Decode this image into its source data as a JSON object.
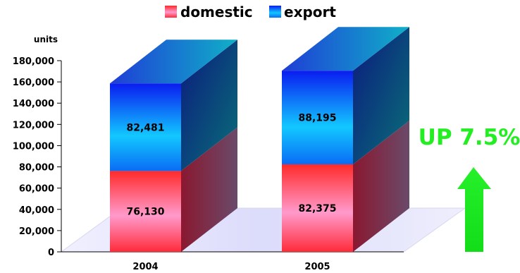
{
  "chart_data": {
    "type": "bar",
    "stacked": true,
    "three_d": true,
    "categories": [
      "2004",
      "2005"
    ],
    "series": [
      {
        "name": "domestic",
        "values": [
          76130,
          82375
        ],
        "labels": [
          "76,130",
          "82,375"
        ],
        "color_top": "#ff2a2a",
        "color_bottom": "#ff8ec2"
      },
      {
        "name": "export",
        "values": [
          82481,
          88195
        ],
        "labels": [
          "82,481",
          "88,195"
        ],
        "color_top": "#0a1cf0",
        "color_bottom": "#14d6ff"
      }
    ],
    "ylabel": "units",
    "ylim": [
      0,
      180000
    ],
    "yticks": [
      0,
      20000,
      40000,
      60000,
      80000,
      100000,
      120000,
      140000,
      160000,
      180000
    ],
    "ytick_labels": [
      "0",
      "20,000",
      "40,000",
      "60,000",
      "80,000",
      "100,000",
      "120,000",
      "140,000",
      "160,000",
      "180,000"
    ],
    "legend_position": "top",
    "annotation": {
      "text": "UP 7.5%",
      "color": "#22ee22",
      "arrow": "up"
    },
    "grid": false
  }
}
